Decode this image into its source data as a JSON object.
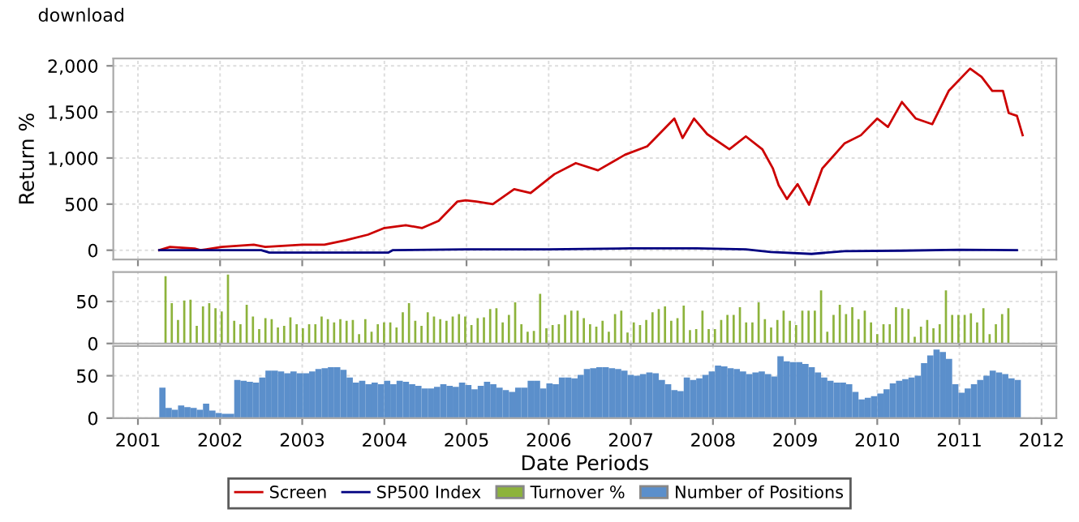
{
  "chart_data": [
    {
      "type": "line",
      "ylabel": "Return %",
      "annotations": [
        "download"
      ],
      "grid": true,
      "legend": "bottom",
      "tick_labels": "y",
      "line_style": "solid",
      "xlim": [
        2000.7,
        2012.18
      ],
      "xticks": [
        2001,
        2002,
        2003,
        2004,
        2005,
        2006,
        2007,
        2008,
        2009,
        2010,
        2011,
        2012
      ],
      "ylim": [
        -100,
        2080
      ],
      "yticks": [
        0,
        500,
        {
          "value": 1000,
          "label": "1,000"
        },
        {
          "value": 1500,
          "label": "1,500"
        },
        {
          "value": 2000,
          "label": "2,000"
        }
      ],
      "series": [
        {
          "name": "Screen",
          "color": "#cc0000",
          "x": [
            2001.26,
            2001.39,
            2001.69,
            2001.76,
            2002.02,
            2002.41,
            2002.55,
            2003.0,
            2003.27,
            2003.53,
            2003.8,
            2004.0,
            2004.26,
            2004.46,
            2004.66,
            2004.89,
            2004.99,
            2005.12,
            2005.32,
            2005.58,
            2005.78,
            2006.07,
            2006.33,
            2006.6,
            2006.93,
            2007.2,
            2007.53,
            2007.63,
            2007.77,
            2007.93,
            2008.2,
            2008.4,
            2008.6,
            2008.73,
            2008.8,
            2008.9,
            2009.03,
            2009.17,
            2009.33,
            2009.6,
            2009.8,
            2010.0,
            2010.13,
            2010.3,
            2010.47,
            2010.67,
            2010.87,
            2011.13,
            2011.27,
            2011.4,
            2011.53,
            2011.6,
            2011.7,
            2011.77
          ],
          "values": [
            0,
            36,
            18,
            0,
            36,
            60,
            36,
            60,
            60,
            108,
            169,
            241,
            271,
            241,
            319,
            529,
            542,
            529,
            500,
            662,
            620,
            825,
            945,
            867,
            1036,
            1127,
            1428,
            1217,
            1428,
            1259,
            1096,
            1235,
            1096,
            886,
            705,
            555,
            717,
            494,
            886,
            1157,
            1247,
            1428,
            1337,
            1608,
            1428,
            1367,
            1729,
            1970,
            1880,
            1729,
            1729,
            1488,
            1458,
            1247
          ]
        },
        {
          "name": "SP500 Index",
          "color": "#000080",
          "x": [
            2001.26,
            2002.5,
            2002.6,
            2004.05,
            2004.1,
            2005.0,
            2006.0,
            2007.0,
            2007.8,
            2008.4,
            2008.7,
            2009.2,
            2009.6,
            2010.3,
            2011.0,
            2011.7
          ],
          "values": [
            0,
            0,
            -25,
            -25,
            0,
            10,
            10,
            20,
            20,
            10,
            -20,
            -40,
            -10,
            -5,
            5,
            0
          ]
        }
      ]
    },
    {
      "type": "bar",
      "grid": true,
      "legend": "bottom",
      "tick_labels": "y",
      "xlim": [
        2000.7,
        2012.18
      ],
      "xticks": [
        2001,
        2002,
        2003,
        2004,
        2005,
        2006,
        2007,
        2008,
        2009,
        2010,
        2011,
        2012
      ],
      "ylim": [
        0,
        85
      ],
      "yticks": [
        0,
        50
      ],
      "series": [
        {
          "name": "Turnover %",
          "color": "#8db33c",
          "x": [
            2001.336,
            2001.412,
            2001.488,
            2001.564,
            2001.64,
            2001.716,
            2001.792,
            2001.868,
            2001.944,
            2002.02,
            2002.096,
            2002.172,
            2002.248,
            2002.324,
            2002.4,
            2002.476,
            2002.552,
            2002.628,
            2002.704,
            2002.78,
            2002.856,
            2002.932,
            2003.008,
            2003.084,
            2003.16,
            2003.236,
            2003.312,
            2003.388,
            2003.464,
            2003.54,
            2003.616,
            2003.692,
            2003.768,
            2003.844,
            2003.92,
            2003.996,
            2004.072,
            2004.148,
            2004.224,
            2004.3,
            2004.376,
            2004.452,
            2004.528,
            2004.604,
            2004.68,
            2004.756,
            2004.832,
            2004.908,
            2004.984,
            2005.06,
            2005.136,
            2005.212,
            2005.288,
            2005.364,
            2005.44,
            2005.516,
            2005.592,
            2005.668,
            2005.744,
            2005.82,
            2005.896,
            2005.972,
            2006.048,
            2006.124,
            2006.2,
            2006.276,
            2006.352,
            2006.428,
            2006.504,
            2006.58,
            2006.656,
            2006.732,
            2006.808,
            2006.884,
            2006.96,
            2007.036,
            2007.112,
            2007.188,
            2007.264,
            2007.34,
            2007.416,
            2007.492,
            2007.568,
            2007.644,
            2007.72,
            2007.796,
            2007.872,
            2007.948,
            2008.024,
            2008.1,
            2008.176,
            2008.252,
            2008.328,
            2008.404,
            2008.48,
            2008.556,
            2008.632,
            2008.708,
            2008.784,
            2008.86,
            2008.936,
            2009.012,
            2009.088,
            2009.164,
            2009.24,
            2009.316,
            2009.392,
            2009.468,
            2009.544,
            2009.62,
            2009.696,
            2009.772,
            2009.848,
            2009.924,
            2010.0,
            2010.076,
            2010.152,
            2010.228,
            2010.304,
            2010.38,
            2010.456,
            2010.532,
            2010.608,
            2010.684,
            2010.76,
            2010.836,
            2010.912,
            2010.988,
            2011.064,
            2011.14,
            2011.216,
            2011.292,
            2011.368,
            2011.444,
            2011.52,
            2011.596
          ],
          "values": [
            80,
            48,
            28,
            51,
            52,
            21,
            44,
            48,
            42,
            38,
            82,
            27,
            23,
            46,
            32,
            17,
            30,
            29,
            19,
            21,
            31,
            23,
            18,
            23,
            23,
            32,
            29,
            25,
            29,
            27,
            28,
            11,
            29,
            14,
            23,
            25,
            25,
            19,
            37,
            48,
            27,
            21,
            37,
            32,
            29,
            27,
            32,
            35,
            32,
            22,
            30,
            31,
            41,
            42,
            25,
            34,
            49,
            23,
            14,
            15,
            59,
            18,
            22,
            23,
            34,
            39,
            39,
            30,
            23,
            20,
            27,
            14,
            35,
            39,
            13,
            25,
            22,
            28,
            37,
            41,
            44,
            27,
            30,
            45,
            16,
            17,
            39,
            17,
            17,
            28,
            34,
            34,
            43,
            25,
            25,
            49,
            29,
            19,
            28,
            39,
            27,
            22,
            39,
            39,
            39,
            63,
            14,
            34,
            46,
            35,
            43,
            29,
            39,
            25,
            11,
            23,
            23,
            43,
            42,
            41,
            8,
            20,
            28,
            18,
            23,
            63,
            34,
            34,
            34,
            36,
            25,
            42,
            11,
            23,
            35,
            42
          ]
        }
      ]
    },
    {
      "type": "bar",
      "xlabel": "Date Periods",
      "grid": true,
      "legend": "bottom",
      "xlim": [
        2000.7,
        2012.18
      ],
      "xticks": [
        2001,
        2002,
        2003,
        2004,
        2005,
        2006,
        2007,
        2008,
        2009,
        2010,
        2011,
        2012
      ],
      "ylim": [
        0,
        85
      ],
      "yticks": [
        0,
        50
      ],
      "series": [
        {
          "name": "Number of Positions",
          "color": "#5b8fcb",
          "x": [
            2001.26,
            2001.336,
            2001.412,
            2001.488,
            2001.564,
            2001.64,
            2001.716,
            2001.792,
            2001.868,
            2001.944,
            2002.02,
            2002.096,
            2002.172,
            2002.248,
            2002.324,
            2002.4,
            2002.476,
            2002.552,
            2002.628,
            2002.704,
            2002.78,
            2002.856,
            2002.932,
            2003.008,
            2003.084,
            2003.16,
            2003.236,
            2003.312,
            2003.388,
            2003.464,
            2003.54,
            2003.616,
            2003.692,
            2003.768,
            2003.844,
            2003.92,
            2003.996,
            2004.072,
            2004.148,
            2004.224,
            2004.3,
            2004.376,
            2004.452,
            2004.528,
            2004.604,
            2004.68,
            2004.756,
            2004.832,
            2004.908,
            2004.984,
            2005.06,
            2005.136,
            2005.212,
            2005.288,
            2005.364,
            2005.44,
            2005.516,
            2005.592,
            2005.668,
            2005.744,
            2005.82,
            2005.896,
            2005.972,
            2006.048,
            2006.124,
            2006.2,
            2006.276,
            2006.352,
            2006.428,
            2006.504,
            2006.58,
            2006.656,
            2006.732,
            2006.808,
            2006.884,
            2006.96,
            2007.036,
            2007.112,
            2007.188,
            2007.264,
            2007.34,
            2007.416,
            2007.492,
            2007.568,
            2007.644,
            2007.72,
            2007.796,
            2007.872,
            2007.948,
            2008.024,
            2008.1,
            2008.176,
            2008.252,
            2008.328,
            2008.404,
            2008.48,
            2008.556,
            2008.632,
            2008.708,
            2008.784,
            2008.86,
            2008.936,
            2009.012,
            2009.088,
            2009.164,
            2009.24,
            2009.316,
            2009.392,
            2009.468,
            2009.544,
            2009.62,
            2009.696,
            2009.772,
            2009.848,
            2009.924,
            2010.0,
            2010.076,
            2010.152,
            2010.228,
            2010.304,
            2010.38,
            2010.456,
            2010.532,
            2010.608,
            2010.684,
            2010.76,
            2010.836,
            2010.912,
            2010.988,
            2011.064,
            2011.14,
            2011.216,
            2011.292,
            2011.368,
            2011.444,
            2011.52,
            2011.596,
            2011.672
          ],
          "values": [
            36,
            12,
            10,
            15,
            13,
            12,
            10,
            17,
            9,
            6,
            5,
            5,
            45,
            44,
            43,
            42,
            48,
            56,
            56,
            55,
            53,
            55,
            53,
            53,
            55,
            58,
            59,
            60,
            60,
            57,
            48,
            42,
            44,
            40,
            42,
            40,
            44,
            40,
            44,
            43,
            40,
            38,
            35,
            35,
            37,
            40,
            38,
            37,
            42,
            39,
            34,
            38,
            43,
            40,
            36,
            33,
            31,
            36,
            36,
            44,
            44,
            35,
            41,
            40,
            48,
            48,
            47,
            51,
            58,
            59,
            60,
            60,
            59,
            58,
            56,
            51,
            50,
            52,
            54,
            53,
            45,
            40,
            33,
            32,
            48,
            45,
            47,
            51,
            55,
            62,
            61,
            59,
            58,
            55,
            52,
            54,
            55,
            52,
            49,
            73,
            67,
            66,
            66,
            64,
            60,
            54,
            48,
            44,
            42,
            42,
            40,
            31,
            22,
            24,
            26,
            29,
            34,
            41,
            44,
            46,
            48,
            50,
            65,
            74,
            81,
            78,
            70,
            40,
            30,
            35,
            40,
            45,
            50,
            56,
            54,
            52,
            47,
            45
          ]
        }
      ]
    }
  ]
}
